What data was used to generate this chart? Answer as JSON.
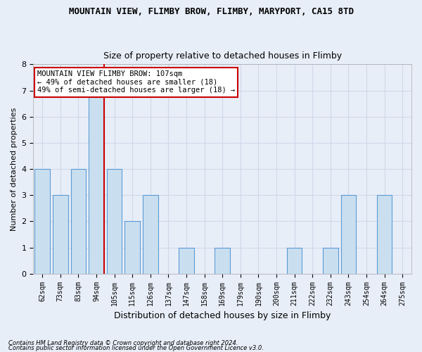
{
  "title": "MOUNTAIN VIEW, FLIMBY BROW, FLIMBY, MARYPORT, CA15 8TD",
  "subtitle": "Size of property relative to detached houses in Flimby",
  "xlabel": "Distribution of detached houses by size in Flimby",
  "ylabel": "Number of detached properties",
  "categories": [
    "62sqm",
    "73sqm",
    "83sqm",
    "94sqm",
    "105sqm",
    "115sqm",
    "126sqm",
    "137sqm",
    "147sqm",
    "158sqm",
    "169sqm",
    "179sqm",
    "190sqm",
    "200sqm",
    "211sqm",
    "222sqm",
    "232sqm",
    "243sqm",
    "254sqm",
    "264sqm",
    "275sqm"
  ],
  "values": [
    4,
    3,
    4,
    7,
    4,
    2,
    3,
    0,
    1,
    0,
    1,
    0,
    0,
    0,
    1,
    0,
    1,
    3,
    0,
    3,
    0
  ],
  "bar_color": "#c9dff0",
  "bar_edge_color": "#5b9bd5",
  "highlight_line_color": "#cc0000",
  "highlight_line_index": 3,
  "ylim": [
    0,
    8
  ],
  "yticks": [
    0,
    1,
    2,
    3,
    4,
    5,
    6,
    7,
    8
  ],
  "annotation_title": "MOUNTAIN VIEW FLIMBY BROW: 107sqm",
  "annotation_line1": "← 49% of detached houses are smaller (18)",
  "annotation_line2": "49% of semi-detached houses are larger (18) →",
  "annotation_box_color": "#ffffff",
  "annotation_box_edge": "#cc0000",
  "background_color": "#e8eef8",
  "grid_color": "#d0d8e8",
  "footnote1": "Contains HM Land Registry data © Crown copyright and database right 2024.",
  "footnote2": "Contains public sector information licensed under the Open Government Licence v3.0."
}
